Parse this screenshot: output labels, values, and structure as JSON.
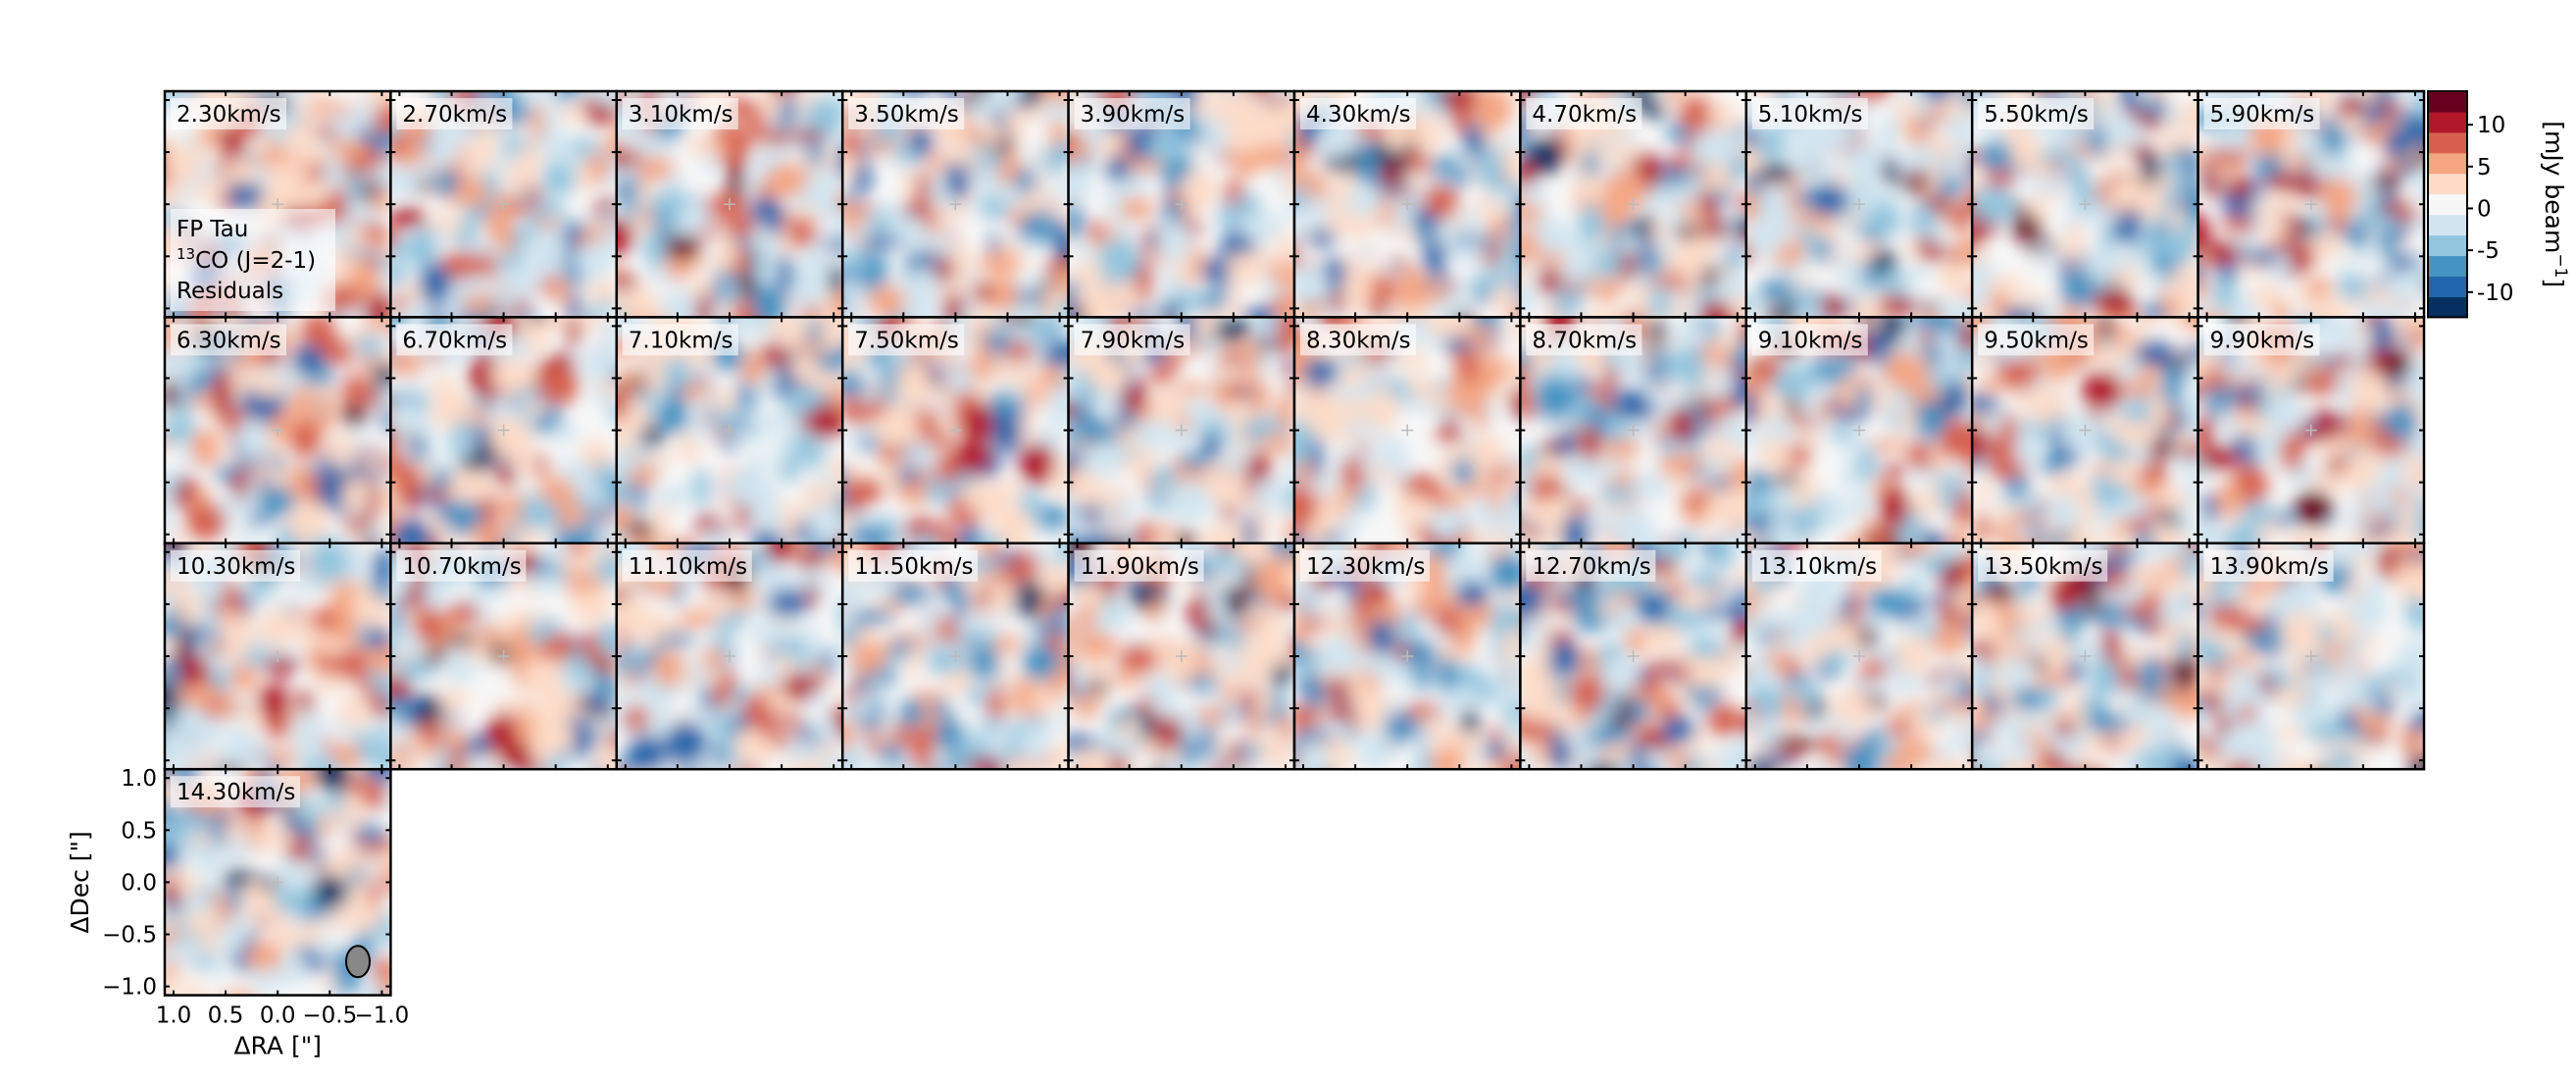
{
  "chart_data": {
    "type": "heatmap",
    "object_label": "FP Tau",
    "line_label_prefix": "13",
    "line_label_rest": "CO (J=2-1)",
    "panel_note": "Residuals",
    "channel_unit": "km/s",
    "channels": [
      "2.30",
      "2.70",
      "3.10",
      "3.50",
      "3.90",
      "4.30",
      "4.70",
      "5.10",
      "5.50",
      "5.90",
      "6.30",
      "6.70",
      "7.10",
      "7.50",
      "7.90",
      "8.30",
      "8.70",
      "9.10",
      "9.50",
      "9.90",
      "10.30",
      "10.70",
      "11.10",
      "11.50",
      "11.90",
      "12.30",
      "12.70",
      "13.10",
      "13.50",
      "13.90",
      "14.30"
    ],
    "xlabel": "ΔRA [\"]",
    "ylabel": "ΔDec [\"]",
    "xlim": [
      1.0,
      -1.0
    ],
    "ylim": [
      -1.0,
      1.0
    ],
    "x_ticks": [
      "1.0",
      "0.5",
      "0.0",
      "−0.5",
      "−1.0"
    ],
    "y_ticks": [
      "1.0",
      "0.5",
      "0.0",
      "−0.5",
      "−1.0"
    ],
    "colorbar": {
      "label_main": "[mJy beam",
      "label_exp": "−1",
      "label_end": "]",
      "range": [
        -13,
        14
      ],
      "ticks": [
        "10",
        "5",
        "0",
        "-5",
        "-10"
      ],
      "tick_values": [
        10,
        5,
        0,
        -5,
        -10
      ],
      "colormap": "RdBu_r",
      "colors": [
        "#053061",
        "#2166ac",
        "#4393c3",
        "#92c5de",
        "#d1e5f0",
        "#f7f7f7",
        "#fddbc7",
        "#f4a582",
        "#d6604d",
        "#b2182b",
        "#67001f"
      ]
    },
    "beam_color": "#888888"
  }
}
